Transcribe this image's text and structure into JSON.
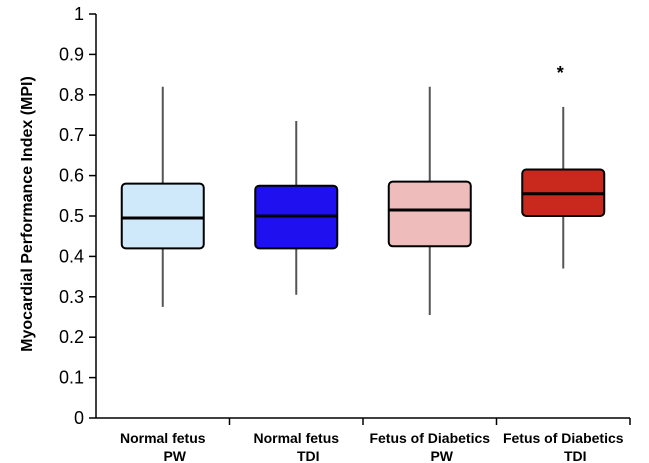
{
  "chart_data": {
    "type": "box",
    "title": "",
    "xlabel": "",
    "ylabel": "Myocardial Performance Index (MPI)",
    "ylim": [
      0,
      1
    ],
    "yticks": [
      "0",
      "0.1",
      "0.2",
      "0.3",
      "0.4",
      "0.5",
      "0.6",
      "0.7",
      "0.8",
      "0.9",
      "1"
    ],
    "grid": false,
    "categories": [
      [
        "Normal fetus",
        "PW"
      ],
      [
        "Normal fetus",
        "TDI"
      ],
      [
        "Fetus of Diabetics",
        "PW"
      ],
      [
        "Fetus of Diabetics",
        "TDI"
      ]
    ],
    "boxes": [
      {
        "min": 0.275,
        "q1": 0.42,
        "median": 0.495,
        "q3": 0.58,
        "max": 0.82,
        "color": "#cfe9fb",
        "marker": ""
      },
      {
        "min": 0.305,
        "q1": 0.42,
        "median": 0.5,
        "q3": 0.575,
        "max": 0.735,
        "color": "#1f10f0",
        "marker": ""
      },
      {
        "min": 0.255,
        "q1": 0.425,
        "median": 0.515,
        "q3": 0.585,
        "max": 0.82,
        "color": "#efbcbc",
        "marker": ""
      },
      {
        "min": 0.37,
        "q1": 0.5,
        "median": 0.555,
        "q3": 0.615,
        "max": 0.77,
        "color": "#c9281c",
        "marker": "*"
      }
    ]
  }
}
